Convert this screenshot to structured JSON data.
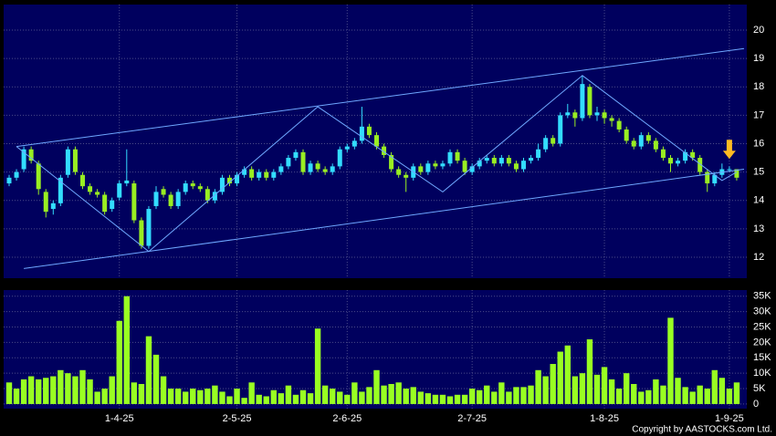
{
  "chart_data": [
    {
      "type": "candlestick",
      "open": [
        14.6,
        14.8,
        15.1,
        15.8,
        15.3,
        14.3,
        13.7,
        13.9,
        14.9,
        15.8,
        14.9,
        14.5,
        14.3,
        14.2,
        13.7,
        14.1,
        14.6,
        14.6,
        13.3,
        12.4,
        13.8,
        14.4,
        14.2,
        13.8,
        14.3,
        14.6,
        14.5,
        14.4,
        14.0,
        14.3,
        14.8,
        14.6,
        14.9,
        15.1,
        14.8,
        15.0,
        14.8,
        15.0,
        15.2,
        15.5,
        15.7,
        15.0,
        15.3,
        15.1,
        15.0,
        15.2,
        15.8,
        15.9,
        16.1,
        16.6,
        16.3,
        15.9,
        15.6,
        15.1,
        14.9,
        14.8,
        15.2,
        15.0,
        15.3,
        15.2,
        15.3,
        15.7,
        15.4,
        15.0,
        15.2,
        15.4,
        15.5,
        15.3,
        15.5,
        15.3,
        15.1,
        15.4,
        15.5,
        15.8,
        16.2,
        16.0,
        17.0,
        17.1,
        16.9,
        18.0,
        17.0,
        17.1,
        16.9,
        16.8,
        16.5,
        16.1,
        15.9,
        16.3,
        16.1,
        15.8,
        15.5,
        15.3,
        15.4,
        15.7,
        15.5,
        15.0,
        14.6,
        14.9,
        15.1,
        15.1
      ],
      "high": [
        14.9,
        15.1,
        15.9,
        15.9,
        15.4,
        14.4,
        14.0,
        14.9,
        15.9,
        15.9,
        15.0,
        14.6,
        14.4,
        14.3,
        14.1,
        14.7,
        15.8,
        14.7,
        13.4,
        13.8,
        14.5,
        14.5,
        14.3,
        14.4,
        14.7,
        14.7,
        14.6,
        14.5,
        14.4,
        14.9,
        14.9,
        15.0,
        15.2,
        15.2,
        15.1,
        15.1,
        15.1,
        15.3,
        15.6,
        15.8,
        15.8,
        15.4,
        15.4,
        15.2,
        15.3,
        15.9,
        16.0,
        16.2,
        17.3,
        16.7,
        16.4,
        16.0,
        15.7,
        15.2,
        15.0,
        15.3,
        15.3,
        15.4,
        15.4,
        15.4,
        15.8,
        15.8,
        15.5,
        15.3,
        15.5,
        15.6,
        15.6,
        15.6,
        15.6,
        15.4,
        15.5,
        15.6,
        16.0,
        16.3,
        16.3,
        17.1,
        17.4,
        17.2,
        18.4,
        18.1,
        17.3,
        17.2,
        17.0,
        16.9,
        16.6,
        16.2,
        16.4,
        16.4,
        16.2,
        15.9,
        15.6,
        15.5,
        15.8,
        15.8,
        15.6,
        15.1,
        15.0,
        15.3,
        15.2,
        15.1
      ],
      "low": [
        14.5,
        14.7,
        15.0,
        15.3,
        14.2,
        13.4,
        13.5,
        13.8,
        14.8,
        14.9,
        14.4,
        14.2,
        14.1,
        13.5,
        13.6,
        14.0,
        14.5,
        13.2,
        12.3,
        12.3,
        13.7,
        14.1,
        13.7,
        13.7,
        14.2,
        14.4,
        14.3,
        13.9,
        13.9,
        14.2,
        14.5,
        14.5,
        14.8,
        14.7,
        14.7,
        14.7,
        14.7,
        14.9,
        15.1,
        15.4,
        14.9,
        14.9,
        15.0,
        14.9,
        14.9,
        15.1,
        15.7,
        15.8,
        16.0,
        16.2,
        15.8,
        15.5,
        15.0,
        14.8,
        14.3,
        14.7,
        14.9,
        14.9,
        15.1,
        15.1,
        15.2,
        15.3,
        14.9,
        14.9,
        15.1,
        15.3,
        15.2,
        15.2,
        15.2,
        15.0,
        15.0,
        15.3,
        15.4,
        15.7,
        15.9,
        15.9,
        16.9,
        16.6,
        16.8,
        16.9,
        16.8,
        16.7,
        16.6,
        16.4,
        16.0,
        15.8,
        15.8,
        16.0,
        15.7,
        15.4,
        15.0,
        15.2,
        15.3,
        15.4,
        14.9,
        14.3,
        14.5,
        14.8,
        15.0,
        14.7
      ],
      "close": [
        14.8,
        15.0,
        15.8,
        15.4,
        14.4,
        13.6,
        13.9,
        14.8,
        15.8,
        15.0,
        14.5,
        14.3,
        14.2,
        13.6,
        14.0,
        14.6,
        14.7,
        13.3,
        12.4,
        13.7,
        14.3,
        14.2,
        13.8,
        14.3,
        14.6,
        14.5,
        14.4,
        14.0,
        14.3,
        14.8,
        14.6,
        14.9,
        15.1,
        14.8,
        15.0,
        14.8,
        15.0,
        15.2,
        15.5,
        15.7,
        15.0,
        15.3,
        15.1,
        15.0,
        15.2,
        15.8,
        15.9,
        16.1,
        16.6,
        16.3,
        15.9,
        15.6,
        15.1,
        14.9,
        14.8,
        15.2,
        15.0,
        15.3,
        15.2,
        15.3,
        15.7,
        15.4,
        15.0,
        15.2,
        15.4,
        15.5,
        15.3,
        15.5,
        15.3,
        15.1,
        15.4,
        15.5,
        15.8,
        16.2,
        16.0,
        17.0,
        17.1,
        16.9,
        18.1,
        17.0,
        17.1,
        16.9,
        16.8,
        16.5,
        16.1,
        15.9,
        16.3,
        16.1,
        15.8,
        15.5,
        15.3,
        15.4,
        15.7,
        15.5,
        15.0,
        14.6,
        14.9,
        15.1,
        15.1,
        14.8
      ],
      "up_color": "#33ddff",
      "down_color": "#99ee22",
      "background": "#00005e",
      "ylim": [
        11.26,
        20.9
      ],
      "yticks": [
        12,
        13,
        14,
        15,
        16,
        17,
        18,
        19,
        20
      ],
      "grid": true,
      "trendlines": [
        {
          "color": "#6fa8ff",
          "x": [
            1,
            100
          ],
          "y": [
            15.9,
            19.35
          ]
        },
        {
          "color": "#6fa8ff",
          "x": [
            2,
            100
          ],
          "y": [
            11.6,
            15.1
          ]
        },
        {
          "color": "#6fa8ff",
          "x": [
            1,
            19,
            42,
            59,
            78,
            97,
            99
          ],
          "y": [
            15.9,
            12.2,
            17.3,
            14.3,
            18.4,
            14.7,
            15.0
          ]
        }
      ],
      "markers": [
        {
          "x": 98,
          "y": 15.3,
          "color": "#ffbb22"
        }
      ]
    },
    {
      "type": "bar",
      "categories": [
        null,
        null,
        null,
        null,
        null,
        null,
        null,
        null,
        null,
        null,
        null,
        null,
        null,
        null,
        null,
        "1-4-25",
        null,
        null,
        null,
        null,
        null,
        null,
        null,
        null,
        null,
        null,
        null,
        null,
        null,
        null,
        null,
        "2-5-25",
        null,
        null,
        null,
        null,
        null,
        null,
        null,
        null,
        null,
        null,
        null,
        null,
        null,
        null,
        "2-6-25",
        null,
        null,
        null,
        null,
        null,
        null,
        null,
        null,
        null,
        null,
        null,
        null,
        null,
        null,
        null,
        null,
        "2-7-25",
        null,
        null,
        null,
        null,
        null,
        null,
        null,
        null,
        null,
        null,
        null,
        null,
        null,
        null,
        null,
        null,
        null,
        "1-8-25",
        null,
        null,
        null,
        null,
        null,
        null,
        null,
        null,
        null,
        null,
        null,
        null,
        null,
        null,
        null,
        null,
        "1-9-25",
        null
      ],
      "values": [
        7000,
        5000,
        8000,
        9000,
        8000,
        8500,
        9000,
        11000,
        10000,
        9000,
        11000,
        8000,
        4000,
        5000,
        9000,
        27000,
        35000,
        7000,
        6500,
        22000,
        16000,
        9000,
        5000,
        5000,
        4000,
        5000,
        4500,
        5000,
        6000,
        4000,
        2500,
        5000,
        2000,
        7000,
        3000,
        2500,
        4500,
        3500,
        6000,
        3000,
        4500,
        3500,
        24500,
        6000,
        5000,
        4000,
        3000,
        7000,
        4000,
        5500,
        11000,
        6000,
        6500,
        7000,
        5000,
        5500,
        4000,
        3500,
        3000,
        3000,
        2500,
        3000,
        3000,
        5000,
        4500,
        6000,
        4000,
        7000,
        4000,
        5500,
        5500,
        6000,
        11000,
        9000,
        13000,
        17000,
        19000,
        9000,
        10000,
        21000,
        9500,
        12000,
        8000,
        5000,
        10000,
        6500,
        4000,
        4500,
        8000,
        6000,
        28000,
        8500,
        5500,
        4000,
        6000,
        5000,
        11000,
        8500,
        5000,
        7000
      ],
      "color": "#99ff22",
      "background": "#00005e",
      "ylim": [
        -1500,
        37000
      ],
      "yticks": [
        0,
        {
          "value": 5000,
          "label": "5K"
        },
        {
          "value": 10000,
          "label": "10K"
        },
        {
          "value": 15000,
          "label": "15K"
        },
        {
          "value": 20000,
          "label": "20K"
        },
        {
          "value": 25000,
          "label": "25K"
        },
        {
          "value": 30000,
          "label": "30K"
        },
        {
          "value": 35000,
          "label": "35K"
        }
      ],
      "grid": true,
      "copyright": "Copyright by AASTOCKS.com Ltd."
    }
  ]
}
